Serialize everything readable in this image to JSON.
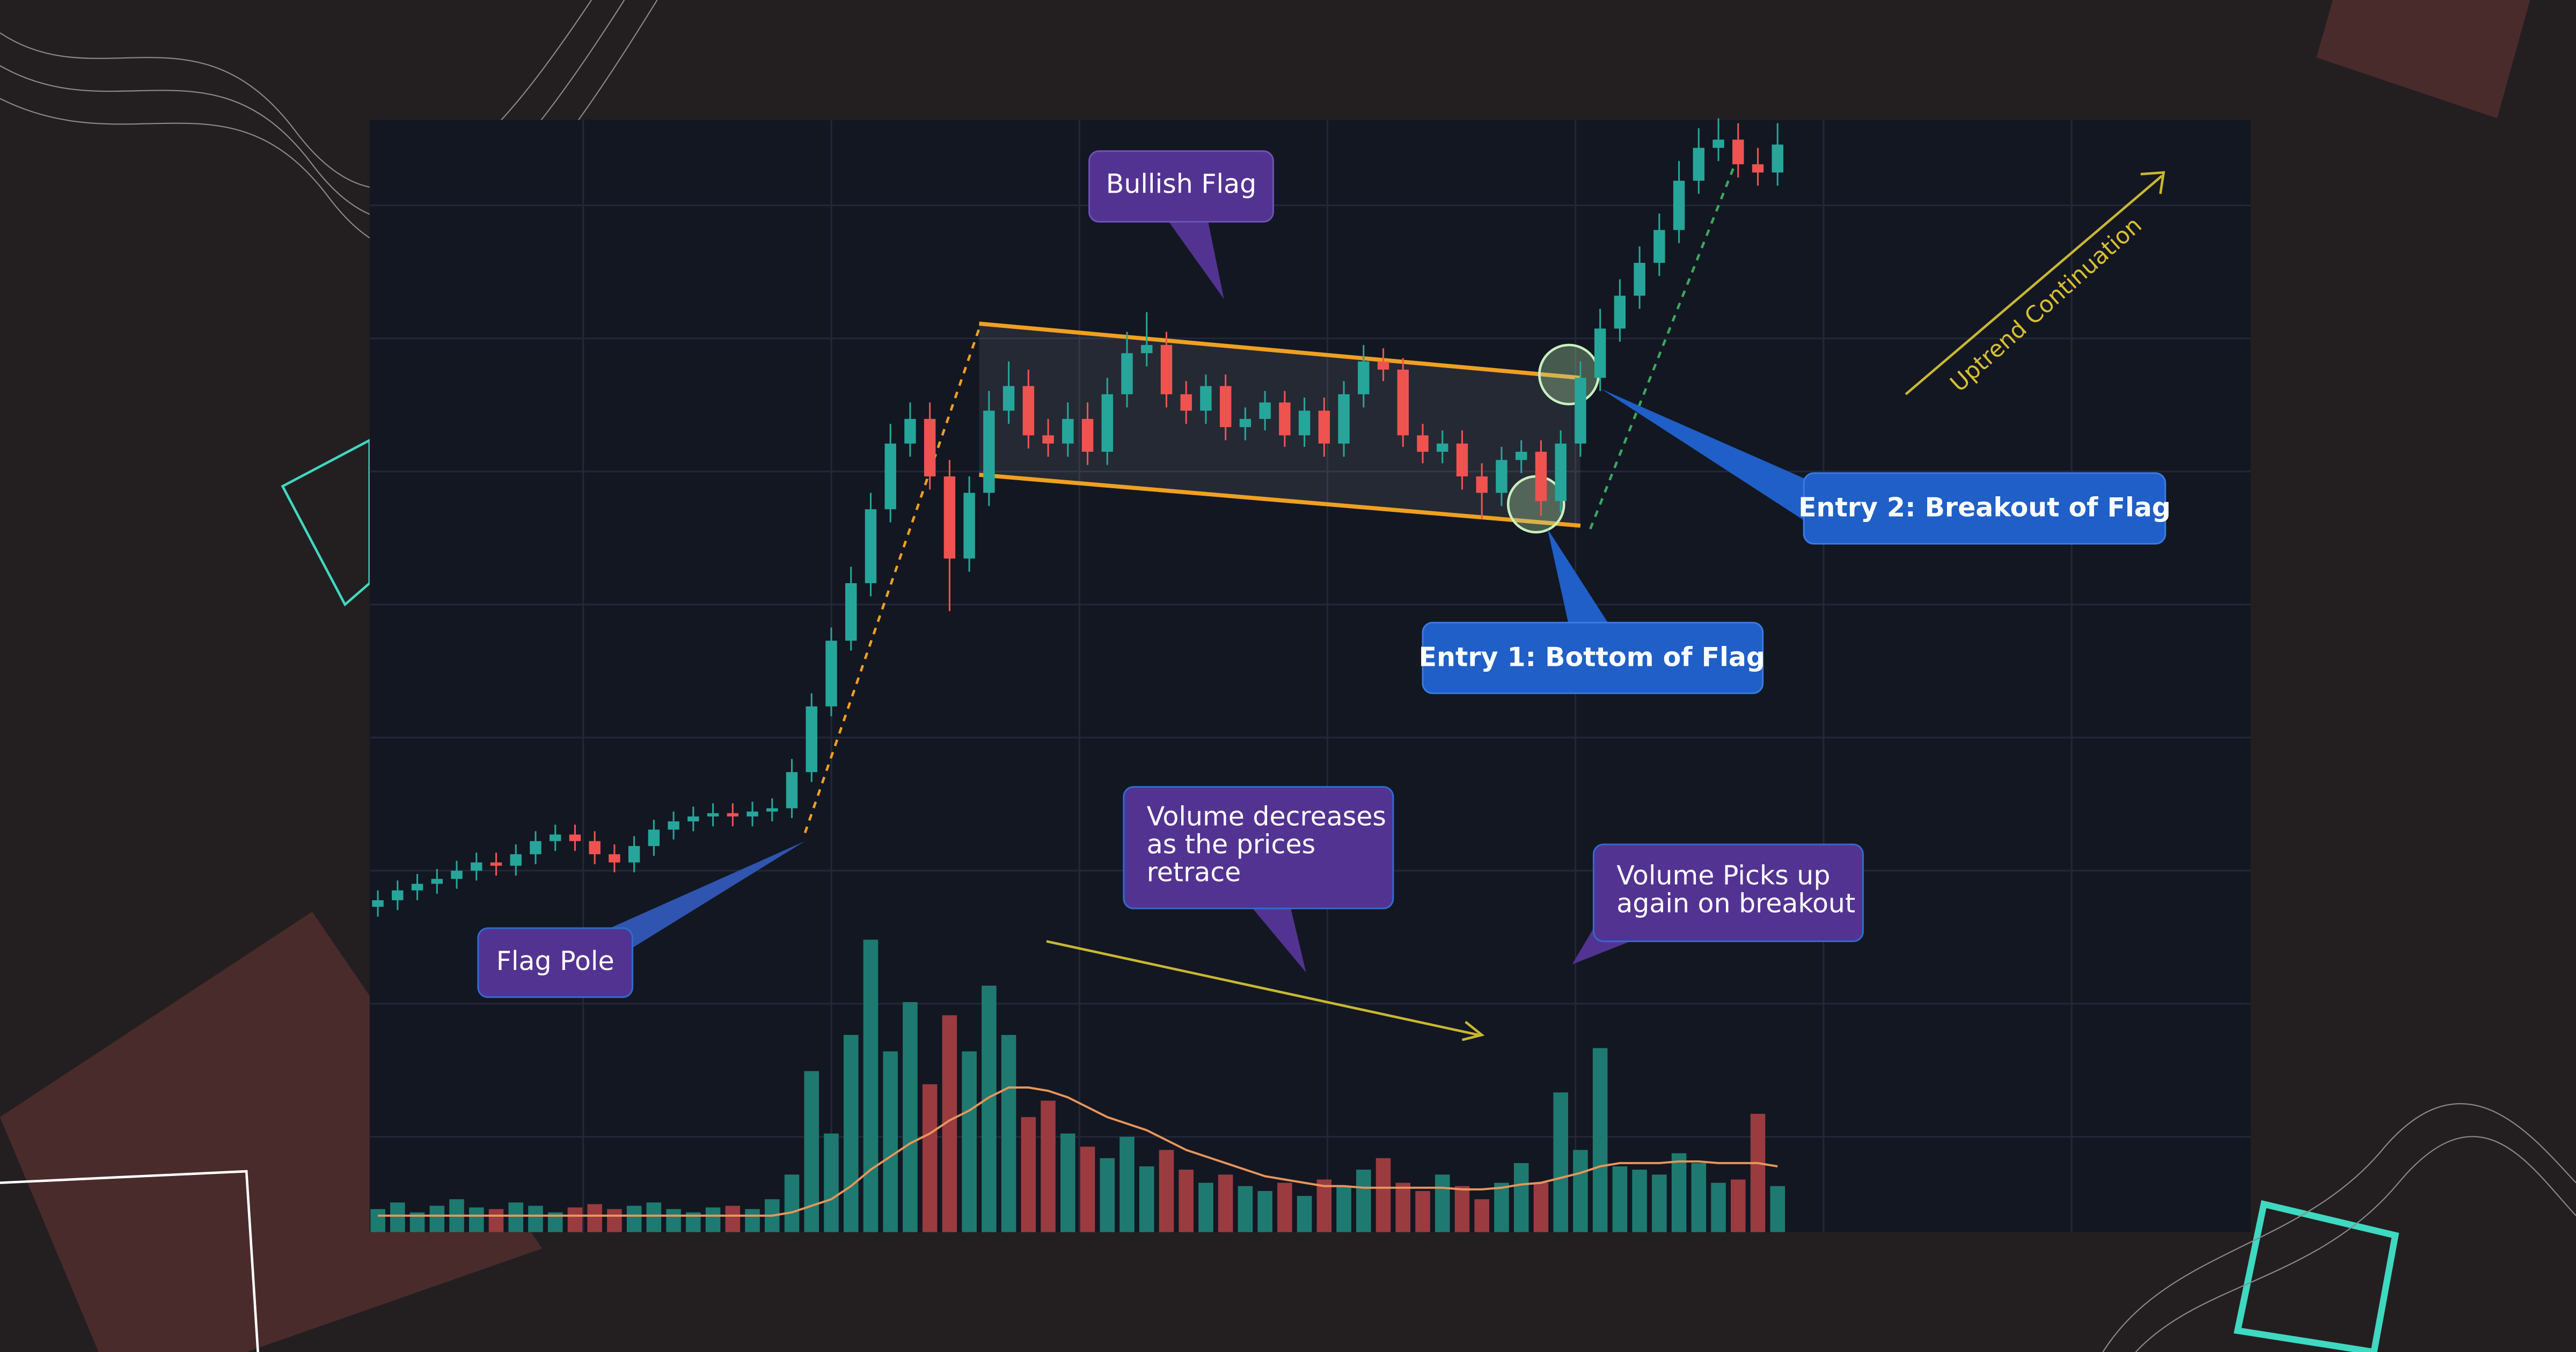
{
  "chart_data": {
    "type": "candlestick",
    "grid": true,
    "up_color": "#26a69a",
    "down_color": "#ef5350",
    "volume_up_color": "#1e7a70",
    "volume_down_color": "#9a3b40",
    "ma_color": "#e8955a",
    "ylim": [
      0,
      677
    ],
    "volume_ylim": [
      0,
      677
    ],
    "open": [
      198,
      202,
      208,
      212,
      215,
      220,
      225,
      223,
      230,
      238,
      242,
      238,
      230,
      225,
      235,
      245,
      250,
      253,
      255,
      253,
      256,
      258,
      280,
      320,
      360,
      395,
      440,
      480,
      495,
      460,
      410,
      450,
      500,
      515,
      485,
      480,
      495,
      475,
      510,
      535,
      540,
      510,
      500,
      515,
      490,
      495,
      505,
      485,
      500,
      480,
      510,
      530,
      525,
      485,
      475,
      480,
      460,
      450,
      470,
      475,
      445,
      480,
      520,
      550,
      570,
      590,
      610,
      640,
      660,
      665,
      650,
      645
    ],
    "high": [
      208,
      214,
      218,
      221,
      226,
      231,
      231,
      236,
      244,
      248,
      248,
      244,
      236,
      241,
      251,
      256,
      259,
      261,
      261,
      262,
      264,
      288,
      328,
      368,
      405,
      450,
      492,
      505,
      505,
      470,
      460,
      512,
      530,
      525,
      495,
      505,
      505,
      520,
      548,
      560,
      548,
      518,
      522,
      522,
      502,
      512,
      512,
      508,
      508,
      518,
      540,
      538,
      532,
      492,
      488,
      488,
      468,
      478,
      482,
      482,
      488,
      530,
      562,
      580,
      600,
      620,
      652,
      672,
      678,
      675,
      660,
      675
    ],
    "low": [
      192,
      196,
      202,
      206,
      209,
      214,
      217,
      217,
      224,
      232,
      232,
      224,
      219,
      219,
      229,
      239,
      244,
      247,
      247,
      247,
      250,
      252,
      274,
      314,
      354,
      387,
      432,
      472,
      452,
      378,
      402,
      442,
      492,
      477,
      472,
      472,
      467,
      467,
      502,
      527,
      502,
      492,
      492,
      482,
      482,
      488,
      478,
      478,
      472,
      472,
      502,
      518,
      478,
      468,
      468,
      452,
      434,
      442,
      462,
      436,
      438,
      472,
      512,
      542,
      562,
      582,
      602,
      632,
      652,
      642,
      637,
      637
    ],
    "close": [
      202,
      208,
      212,
      215,
      220,
      225,
      223,
      230,
      238,
      242,
      238,
      230,
      225,
      235,
      245,
      250,
      253,
      255,
      253,
      256,
      258,
      280,
      320,
      360,
      395,
      440,
      480,
      495,
      460,
      410,
      450,
      500,
      515,
      485,
      480,
      495,
      475,
      510,
      535,
      540,
      510,
      500,
      515,
      490,
      495,
      505,
      485,
      500,
      480,
      510,
      530,
      525,
      485,
      475,
      480,
      460,
      450,
      470,
      475,
      445,
      480,
      520,
      550,
      570,
      590,
      610,
      640,
      660,
      665,
      650,
      645,
      662
    ],
    "volume": [
      14,
      18,
      12,
      16,
      20,
      15,
      14,
      18,
      16,
      12,
      15,
      17,
      14,
      16,
      18,
      14,
      12,
      15,
      16,
      14,
      20,
      35,
      98,
      60,
      120,
      178,
      110,
      140,
      90,
      132,
      110,
      150,
      120,
      70,
      80,
      60,
      52,
      45,
      58,
      40,
      50,
      38,
      30,
      35,
      28,
      25,
      30,
      22,
      32,
      28,
      38,
      45,
      30,
      25,
      35,
      28,
      20,
      30,
      42,
      30,
      85,
      50,
      112,
      40,
      38,
      35,
      48,
      42,
      30,
      32,
      72,
      28
    ],
    "volume_ma": [
      10,
      10,
      10,
      10,
      10,
      10,
      10,
      10,
      10,
      10,
      10,
      10,
      10,
      10,
      10,
      10,
      10,
      10,
      10,
      10,
      10,
      12,
      16,
      20,
      28,
      38,
      46,
      54,
      60,
      68,
      74,
      82,
      88,
      88,
      86,
      82,
      76,
      70,
      66,
      62,
      56,
      50,
      46,
      42,
      38,
      34,
      32,
      30,
      28,
      28,
      27,
      27,
      27,
      27,
      27,
      26,
      26,
      27,
      29,
      30,
      33,
      36,
      40,
      42,
      42,
      42,
      43,
      43,
      42,
      42,
      42,
      40
    ],
    "annotations": [
      {
        "lines": [
          "Bullish Flag"
        ]
      },
      {
        "lines": [
          "Flag Pole"
        ]
      },
      {
        "lines": [
          "Volume decreases",
          "as the prices",
          "retrace"
        ]
      },
      {
        "lines": [
          "Volume Picks up",
          "again on breakout"
        ]
      },
      {
        "lines": [
          "Entry 1: Bottom of Flag"
        ]
      },
      {
        "lines": [
          "Entry 2: Breakout of Flag"
        ]
      },
      {
        "lines": [
          "Uptrend Continuation"
        ]
      }
    ]
  }
}
